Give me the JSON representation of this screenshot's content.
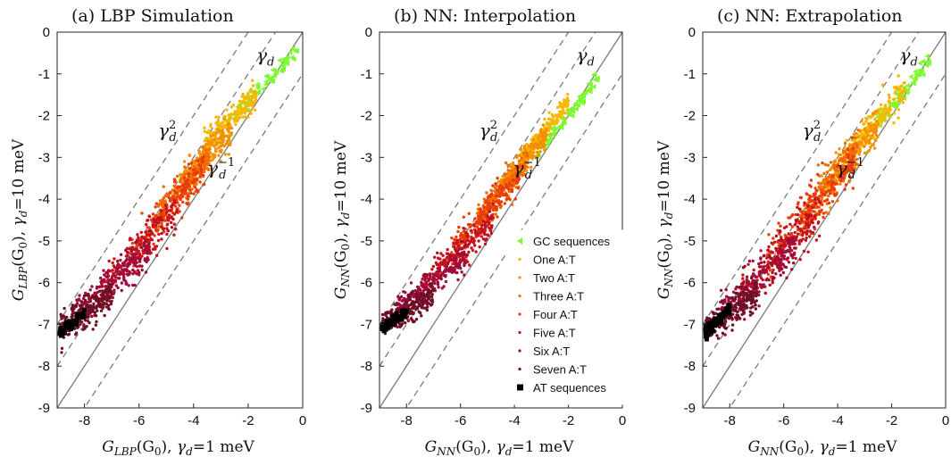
{
  "chart_data": [
    {
      "type": "scatter",
      "title": "(a) LBP Simulation",
      "xlabel": "G_LBP(G0), γd=1 meV",
      "ylabel": "G_LBP(G0), γd=10 meV",
      "xlim": [
        -9,
        0
      ],
      "ylim": [
        -9,
        0
      ],
      "xticks": [
        "-8",
        "-6",
        "-4",
        "-2",
        "0"
      ],
      "yticks": [
        "0",
        "-1",
        "-2",
        "-3",
        "-4",
        "-5",
        "-6",
        "-7",
        "-8",
        "-9"
      ],
      "reference_lines": [
        {
          "label": "γd",
          "slope": 1,
          "offset": 0,
          "style": "solid"
        },
        {
          "label": "γd^2",
          "slope": 1,
          "offset": 2,
          "style": "dashed"
        },
        {
          "label": "",
          "slope": 1,
          "offset": 1,
          "style": "dashed"
        },
        {
          "label": "γd^-1",
          "slope": 1,
          "offset": -1,
          "style": "dashed"
        }
      ],
      "series": [
        {
          "name": "GC sequences",
          "marker": "triangle",
          "color": "#7CFC2E",
          "x_range": [
            -3.0,
            -0.2
          ],
          "y_center": [
            -2.3,
            -0.4
          ],
          "spread": 0.15
        },
        {
          "name": "One A:T",
          "marker": "dot",
          "color": "#F5B800",
          "x_range": [
            -3.6,
            -1.7
          ],
          "y_center": [
            -2.7,
            -1.5
          ],
          "spread": 0.25
        },
        {
          "name": "Two A:T",
          "marker": "dot",
          "color": "#F39000",
          "x_range": [
            -4.5,
            -2.6
          ],
          "y_center": [
            -3.6,
            -2.4
          ],
          "spread": 0.3
        },
        {
          "name": "Three A:T",
          "marker": "dot",
          "color": "#F06A00",
          "x_range": [
            -5.3,
            -3.4
          ],
          "y_center": [
            -4.4,
            -3.0
          ],
          "spread": 0.3
        },
        {
          "name": "Four A:T",
          "marker": "dot",
          "color": "#E83C0C",
          "x_range": [
            -6.4,
            -3.6
          ],
          "y_center": [
            -5.4,
            -3.2
          ],
          "spread": 0.35
        },
        {
          "name": "Five A:T",
          "marker": "dot",
          "color": "#C5101E",
          "x_range": [
            -7.4,
            -4.6
          ],
          "y_center": [
            -6.2,
            -4.3
          ],
          "spread": 0.4
        },
        {
          "name": "Six A:T",
          "marker": "dot",
          "color": "#9E0C3C",
          "x_range": [
            -8.4,
            -5.6
          ],
          "y_center": [
            -6.8,
            -5.2
          ],
          "spread": 0.35
        },
        {
          "name": "Seven A:T",
          "marker": "dot",
          "color": "#6E1025",
          "x_range": [
            -8.9,
            -7.0
          ],
          "y_center": [
            -7.1,
            -6.3
          ],
          "spread": 0.3
        },
        {
          "name": "AT sequences",
          "marker": "square",
          "color": "#000000",
          "x_range": [
            -8.9,
            -8.0
          ],
          "y_center": [
            -7.2,
            -6.8
          ],
          "spread": 0.12
        }
      ],
      "line_labels": {
        "gd": "γ",
        "gd_sub": "d",
        "sup2": "2",
        "supm1": "−1"
      }
    },
    {
      "type": "scatter",
      "title": "(b) NN: Interpolation",
      "xlabel": "G_NN(G0), γd=1 meV",
      "ylabel": "G_NN(G0), γd=10 meV",
      "xlim": [
        -9,
        0
      ],
      "ylim": [
        -9,
        0
      ],
      "xticks": [
        "-8",
        "-6",
        "-4",
        "-2",
        "0"
      ],
      "yticks": [
        "0",
        "-1",
        "-2",
        "-3",
        "-4",
        "-5",
        "-6",
        "-7",
        "-8",
        "-9"
      ],
      "reference_lines": [
        {
          "label": "γd",
          "slope": 1,
          "offset": 0,
          "style": "solid"
        },
        {
          "label": "γd^2",
          "slope": 1,
          "offset": 2,
          "style": "dashed"
        },
        {
          "label": "",
          "slope": 1,
          "offset": 1,
          "style": "dashed"
        },
        {
          "label": "γd^-1",
          "slope": 1,
          "offset": -1,
          "style": "dashed"
        }
      ],
      "series": [
        {
          "name": "GC sequences",
          "marker": "triangle",
          "color": "#7CFC2E",
          "x_range": [
            -3.2,
            -0.8
          ],
          "y_center": [
            -2.9,
            -1.0
          ],
          "spread": 0.12
        },
        {
          "name": "One A:T",
          "marker": "dot",
          "color": "#F5B800",
          "x_range": [
            -3.8,
            -2.0
          ],
          "y_center": [
            -3.1,
            -1.7
          ],
          "spread": 0.2
        },
        {
          "name": "Two A:T",
          "marker": "dot",
          "color": "#F39000",
          "x_range": [
            -4.6,
            -2.8
          ],
          "y_center": [
            -3.8,
            -2.5
          ],
          "spread": 0.25
        },
        {
          "name": "Three A:T",
          "marker": "dot",
          "color": "#F06A00",
          "x_range": [
            -5.4,
            -3.5
          ],
          "y_center": [
            -4.5,
            -3.1
          ],
          "spread": 0.3
        },
        {
          "name": "Four A:T",
          "marker": "dot",
          "color": "#E83C0C",
          "x_range": [
            -6.4,
            -3.8
          ],
          "y_center": [
            -5.3,
            -3.4
          ],
          "spread": 0.3
        },
        {
          "name": "Five A:T",
          "marker": "dot",
          "color": "#C5101E",
          "x_range": [
            -7.4,
            -4.8
          ],
          "y_center": [
            -6.1,
            -4.5
          ],
          "spread": 0.3
        },
        {
          "name": "Six A:T",
          "marker": "dot",
          "color": "#9E0C3C",
          "x_range": [
            -8.4,
            -5.8
          ],
          "y_center": [
            -6.7,
            -5.4
          ],
          "spread": 0.3
        },
        {
          "name": "Seven A:T",
          "marker": "dot",
          "color": "#6E1025",
          "x_range": [
            -8.9,
            -7.0
          ],
          "y_center": [
            -7.0,
            -6.3
          ],
          "spread": 0.25
        },
        {
          "name": "AT sequences",
          "marker": "square",
          "color": "#000000",
          "x_range": [
            -8.9,
            -8.0
          ],
          "y_center": [
            -7.1,
            -6.7
          ],
          "spread": 0.1
        }
      ],
      "line_labels": {
        "gd": "γ",
        "gd_sub": "d",
        "sup2": "2",
        "supm1": "−1"
      }
    },
    {
      "type": "scatter",
      "title": "(c) NN: Extrapolation",
      "xlabel": "G_NN(G0), γd=1 meV",
      "ylabel": "G_NN(G0), γd=10 meV",
      "xlim": [
        -9,
        0
      ],
      "ylim": [
        -9,
        0
      ],
      "xticks": [
        "-8",
        "-6",
        "-4",
        "-2",
        "0"
      ],
      "yticks": [
        "0",
        "-1",
        "-2",
        "-3",
        "-4",
        "-5",
        "-6",
        "-7",
        "-8",
        "-9"
      ],
      "reference_lines": [
        {
          "label": "γd",
          "slope": 1,
          "offset": 0,
          "style": "solid"
        },
        {
          "label": "γd^2",
          "slope": 1,
          "offset": 2,
          "style": "dashed"
        },
        {
          "label": "",
          "slope": 1,
          "offset": 1,
          "style": "dashed"
        },
        {
          "label": "γd^-1",
          "slope": 1,
          "offset": -1,
          "style": "dashed"
        }
      ],
      "series": [
        {
          "name": "GC sequences",
          "marker": "triangle",
          "color": "#7CFC2E",
          "x_range": [
            -2.8,
            -0.5
          ],
          "y_center": [
            -2.4,
            -0.6
          ],
          "spread": 0.15
        },
        {
          "name": "One A:T",
          "marker": "dot",
          "color": "#F5B800",
          "x_range": [
            -3.8,
            -1.5
          ],
          "y_center": [
            -3.1,
            -1.3
          ],
          "spread": 0.3
        },
        {
          "name": "Two A:T",
          "marker": "dot",
          "color": "#F39000",
          "x_range": [
            -4.6,
            -2.5
          ],
          "y_center": [
            -3.8,
            -2.2
          ],
          "spread": 0.35
        },
        {
          "name": "Three A:T",
          "marker": "dot",
          "color": "#F06A00",
          "x_range": [
            -5.4,
            -3.2
          ],
          "y_center": [
            -4.5,
            -2.8
          ],
          "spread": 0.4
        },
        {
          "name": "Four A:T",
          "marker": "dot",
          "color": "#E83C0C",
          "x_range": [
            -6.6,
            -3.4
          ],
          "y_center": [
            -5.4,
            -3.1
          ],
          "spread": 0.45
        },
        {
          "name": "Five A:T",
          "marker": "dot",
          "color": "#C5101E",
          "x_range": [
            -7.6,
            -4.6
          ],
          "y_center": [
            -6.3,
            -4.3
          ],
          "spread": 0.45
        },
        {
          "name": "Six A:T",
          "marker": "dot",
          "color": "#9E0C3C",
          "x_range": [
            -8.4,
            -5.6
          ],
          "y_center": [
            -6.8,
            -5.1
          ],
          "spread": 0.4
        },
        {
          "name": "Seven A:T",
          "marker": "dot",
          "color": "#6E1025",
          "x_range": [
            -8.9,
            -7.0
          ],
          "y_center": [
            -7.1,
            -6.3
          ],
          "spread": 0.3
        },
        {
          "name": "AT sequences",
          "marker": "square",
          "color": "#000000",
          "x_range": [
            -8.9,
            -8.0
          ],
          "y_center": [
            -7.2,
            -6.6
          ],
          "spread": 0.12
        }
      ],
      "line_labels": {
        "gd": "γ",
        "gd_sub": "d",
        "sup2": "2",
        "supm1": "−1"
      }
    }
  ],
  "legend": {
    "location": "panel (b), lower-right",
    "entries": [
      "GC sequences",
      "One A:T",
      "Two A:T",
      "Three A:T",
      "Four A:T",
      "Five A:T",
      "Six A:T",
      "Seven A:T",
      "AT sequences"
    ]
  },
  "axis_label_parts": {
    "lbp_sub": "LBP",
    "nn_sub": "NN",
    "arg": "(G",
    "arg_sub": "0",
    "arg_close": "), ",
    "gamma": "γ",
    "gamma_sub": "d",
    "x_val": "=1 meV",
    "y_val": "=10 meV",
    "G": "G"
  }
}
